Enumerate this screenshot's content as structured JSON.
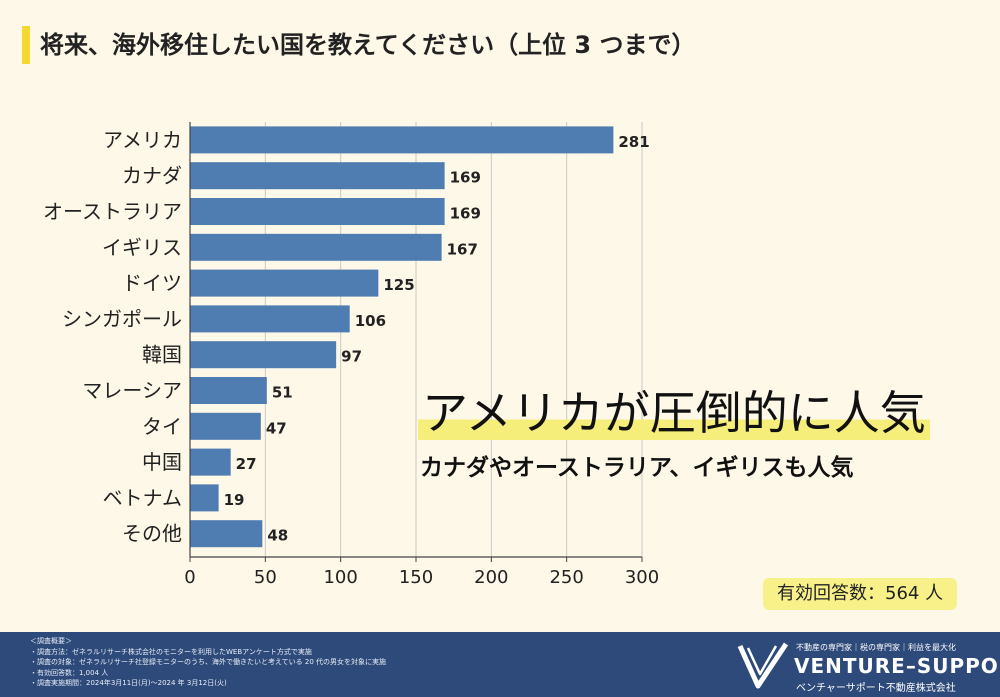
{
  "title": "将来、海外移住したい国を教えてください（上位 3 つまで）",
  "chart_data": {
    "type": "bar",
    "orientation": "horizontal",
    "categories": [
      "アメリカ",
      "カナダ",
      "オーストラリア",
      "イギリス",
      "ドイツ",
      "シンガポール",
      "韓国",
      "マレーシア",
      "タイ",
      "中国",
      "ベトナム",
      "その他"
    ],
    "values": [
      281,
      169,
      169,
      167,
      125,
      106,
      97,
      51,
      47,
      27,
      19,
      48
    ],
    "xlim": [
      0,
      300
    ],
    "xticks": [
      "0",
      "50",
      "100",
      "150",
      "200",
      "250",
      "300"
    ],
    "grid": true,
    "bar_color": "#4f7db1"
  },
  "headline": "アメリカが圧倒的に人気",
  "subheadline": "カナダやオーストラリア、イギリスも人気",
  "respondents": "有効回答数：564 人",
  "footer": {
    "notes": [
      "＜調査概要＞",
      "・調査方法：ゼネラルリサーチ株式会社のモニターを利用したWEBアンケート方式で実施",
      "・調査の対象：ゼネラルリサーチ社登録モニターのうち、海外で働きたいと考えている 20 代の男女を対象に実施",
      "・有効回答数：1,004 人",
      "・調査実施期間：2024年3月11日(月)～2024 年 3月12日(火)"
    ],
    "tagline": "不動産の専門家｜税の専門家｜利益を最大化",
    "brand": "VENTURE–SUPPORT",
    "company": "ベンチャーサポート不動産株式会社"
  },
  "colors": {
    "background": "#fdf8e8",
    "accent_yellow": "#f5d832",
    "bar": "#4f7db1",
    "footer": "#2d4a7a"
  }
}
